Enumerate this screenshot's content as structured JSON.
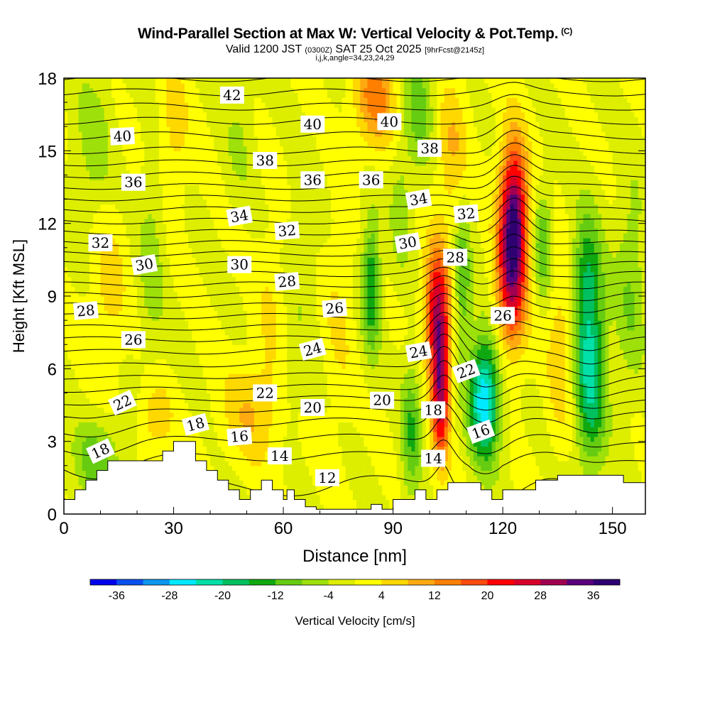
{
  "header": {
    "title": "Wind-Parallel Section at Max W: Vertical Velocity & Pot.Temp.",
    "copyright": "(C)",
    "valid_prefix": "Valid 1200 JST",
    "valid_utc": "(0300Z)",
    "valid_date": "SAT 25 Oct 2025",
    "forecast": "[9hrFcst@2145z]",
    "indices": "i,j,k,angle=34,23,24,29"
  },
  "chart_data": {
    "type": "heatmap",
    "xlabel": "Distance [nm]",
    "ylabel": "Height [Kft MSL]",
    "xlim": [
      0,
      159
    ],
    "ylim": [
      0,
      18
    ],
    "x_ticks": [
      0,
      30,
      60,
      90,
      120,
      150
    ],
    "y_ticks": [
      0,
      3,
      6,
      9,
      12,
      15,
      18
    ],
    "colorbar": {
      "label": "Vertical Velocity [cm/s]",
      "range": [
        -40,
        40
      ],
      "step": 4,
      "tick_labels": [
        -36,
        -28,
        -20,
        -12,
        -4,
        4,
        12,
        20,
        28,
        36
      ],
      "colors": [
        "#0000ee",
        "#0a50f0",
        "#0c96f0",
        "#00eaff",
        "#00e0a8",
        "#00c060",
        "#10a810",
        "#66cc11",
        "#9ee00a",
        "#ddee00",
        "#ffff00",
        "#ffd800",
        "#ffaa10",
        "#ff8000",
        "#ff4a10",
        "#ff0000",
        "#d8002a",
        "#a00050",
        "#5a007a",
        "#2e0070"
      ]
    },
    "terrain_kft": [
      [
        0,
        0.6
      ],
      [
        3,
        0.6
      ],
      [
        3,
        1.0
      ],
      [
        6,
        1.0
      ],
      [
        6,
        1.4
      ],
      [
        9,
        1.4
      ],
      [
        9,
        1.8
      ],
      [
        12,
        1.8
      ],
      [
        12,
        2.2
      ],
      [
        15,
        2.2
      ],
      [
        15,
        2.2
      ],
      [
        27,
        2.2
      ],
      [
        27,
        2.6
      ],
      [
        30,
        2.6
      ],
      [
        30,
        3.0
      ],
      [
        36,
        3.0
      ],
      [
        36,
        2.2
      ],
      [
        39,
        2.2
      ],
      [
        39,
        1.8
      ],
      [
        42,
        1.8
      ],
      [
        42,
        1.4
      ],
      [
        45,
        1.4
      ],
      [
        45,
        1.0
      ],
      [
        48,
        1.0
      ],
      [
        48,
        0.6
      ],
      [
        51,
        0.6
      ],
      [
        51,
        1.0
      ],
      [
        54,
        1.0
      ],
      [
        54,
        1.4
      ],
      [
        57,
        1.4
      ],
      [
        57,
        1.0
      ],
      [
        60,
        1.0
      ],
      [
        60,
        0.6
      ],
      [
        61,
        0.6
      ],
      [
        61,
        1.0
      ],
      [
        63,
        1.0
      ],
      [
        63,
        0.6
      ],
      [
        66,
        0.6
      ],
      [
        66,
        0.3
      ],
      [
        69,
        0.3
      ],
      [
        69,
        0.2
      ],
      [
        84,
        0.2
      ],
      [
        84,
        0.4
      ],
      [
        87,
        0.4
      ],
      [
        87,
        0.2
      ],
      [
        90,
        0.2
      ],
      [
        90,
        0.6
      ],
      [
        96,
        0.6
      ],
      [
        96,
        1.0
      ],
      [
        99,
        1.0
      ],
      [
        99,
        0.6
      ],
      [
        102,
        0.6
      ],
      [
        102,
        1.0
      ],
      [
        105,
        1.0
      ],
      [
        105,
        1.3
      ],
      [
        114,
        1.3
      ],
      [
        114,
        1.0
      ],
      [
        117,
        1.0
      ],
      [
        117,
        0.6
      ],
      [
        120,
        0.6
      ],
      [
        120,
        1.0
      ],
      [
        129,
        1.0
      ],
      [
        129,
        1.4
      ],
      [
        135,
        1.4
      ],
      [
        135,
        1.6
      ],
      [
        153,
        1.6
      ],
      [
        153,
        1.3
      ],
      [
        159,
        1.3
      ],
      [
        159,
        0
      ]
    ],
    "vertical_velocity_features": [
      {
        "x": 123,
        "y": 12.2,
        "w": 36,
        "sx": 2.6,
        "sy": 2.2
      },
      {
        "x": 122,
        "y": 9.0,
        "w": 16,
        "sx": 3.0,
        "sy": 2.0
      },
      {
        "x": 102,
        "y": 8.5,
        "w": 26,
        "sx": 2.4,
        "sy": 1.8
      },
      {
        "x": 103,
        "y": 5.0,
        "w": 28,
        "sx": 1.7,
        "sy": 2.0
      },
      {
        "x": 115,
        "y": 4.8,
        "w": -28,
        "sx": 3.0,
        "sy": 1.8
      },
      {
        "x": 144,
        "y": 5.5,
        "w": -20,
        "sx": 3.0,
        "sy": 2.5
      },
      {
        "x": 143,
        "y": 9.8,
        "w": -14,
        "sx": 3.0,
        "sy": 2.0
      },
      {
        "x": 84,
        "y": 9.5,
        "w": -16,
        "sx": 1.8,
        "sy": 2.0
      },
      {
        "x": 95,
        "y": 3.5,
        "w": -12,
        "sx": 2.0,
        "sy": 2.0
      },
      {
        "x": 131,
        "y": 11.2,
        "w": -12,
        "sx": 1.8,
        "sy": 1.5
      },
      {
        "x": 109,
        "y": 9.6,
        "w": -12,
        "sx": 1.6,
        "sy": 2.0
      },
      {
        "x": 85,
        "y": 17.2,
        "w": 14,
        "sx": 4.0,
        "sy": 1.5
      },
      {
        "x": 97,
        "y": 17.0,
        "w": -10,
        "sx": 3.0,
        "sy": 2.0
      },
      {
        "x": 52,
        "y": 4.3,
        "w": 8,
        "sx": 6.0,
        "sy": 1.5
      },
      {
        "x": 9,
        "y": 2.2,
        "w": -10,
        "sx": 5.0,
        "sy": 1.2
      },
      {
        "x": 25,
        "y": 4.0,
        "w": 8,
        "sx": 3.0,
        "sy": 1.0
      },
      {
        "x": 8,
        "y": 15.0,
        "w": -6,
        "sx": 4.0,
        "sy": 2.5
      },
      {
        "x": 24,
        "y": 10.5,
        "w": -6,
        "sx": 2.5,
        "sy": 3.0
      },
      {
        "x": 12,
        "y": 9.5,
        "w": 6,
        "sx": 3.5,
        "sy": 2.5
      },
      {
        "x": 30,
        "y": 16.0,
        "w": 6,
        "sx": 3.0,
        "sy": 2.0
      },
      {
        "x": 48,
        "y": 15.5,
        "w": -4,
        "sx": 3.0,
        "sy": 2.0
      },
      {
        "x": 57,
        "y": 8.5,
        "w": 4,
        "sx": 3.0,
        "sy": 2.5
      },
      {
        "x": 65,
        "y": 11.0,
        "w": -4,
        "sx": 3.0,
        "sy": 2.5
      },
      {
        "x": 75,
        "y": 8.0,
        "w": 4,
        "sx": 3.0,
        "sy": 3.0
      },
      {
        "x": 136,
        "y": 7.0,
        "w": 8,
        "sx": 2.5,
        "sy": 2.5
      },
      {
        "x": 155,
        "y": 9.5,
        "w": -8,
        "sx": 3.0,
        "sy": 3.0
      },
      {
        "x": 106,
        "y": 15.0,
        "w": 8,
        "sx": 3.0,
        "sy": 2.0
      },
      {
        "x": 92,
        "y": 12.5,
        "w": -6,
        "sx": 2.0,
        "sy": 2.0
      },
      {
        "x": 62,
        "y": 5.5,
        "w": -4,
        "sx": 4.0,
        "sy": 1.5
      }
    ],
    "theta_levels_c": [
      11,
      12,
      13,
      14,
      15,
      16,
      17,
      18,
      19,
      20,
      21,
      22,
      23,
      24,
      25,
      26,
      27,
      28,
      29,
      30,
      31,
      32,
      33,
      34,
      35,
      36,
      37,
      38,
      39,
      40,
      41,
      42,
      43
    ],
    "theta_profile": [
      [
        0,
        10.3
      ],
      [
        1,
        10.9
      ],
      [
        2,
        11.5
      ],
      [
        3,
        12.8
      ],
      [
        4,
        14.3
      ],
      [
        5,
        16.5
      ],
      [
        6,
        18.6
      ],
      [
        7,
        20.5
      ],
      [
        8,
        22.6
      ],
      [
        9,
        24.9
      ],
      [
        10,
        27.2
      ],
      [
        11,
        29.6
      ],
      [
        12,
        31.8
      ],
      [
        13,
        33.9
      ],
      [
        14,
        36.0
      ],
      [
        15,
        38.0
      ],
      [
        16,
        39.6
      ],
      [
        17,
        41.3
      ],
      [
        18,
        43.0
      ]
    ],
    "theta_features": [
      {
        "x": 123,
        "y": 12.5,
        "a": -2.2,
        "sx": 4,
        "sy": 3
      },
      {
        "x": 104,
        "y": 8.5,
        "a": -1.6,
        "sx": 4,
        "sy": 2.5
      },
      {
        "x": 104,
        "y": 5.0,
        "a": -1.4,
        "sx": 3,
        "sy": 2.5
      },
      {
        "x": 116,
        "y": 5.0,
        "a": 1.2,
        "sx": 5,
        "sy": 2.5
      },
      {
        "x": 144,
        "y": 5.5,
        "a": 0.8,
        "sx": 5,
        "sy": 3
      },
      {
        "x": 10,
        "y": 3.0,
        "a": 0.8,
        "sx": 10,
        "sy": 2
      }
    ],
    "contour_labels": [
      {
        "text": "42",
        "x": 46,
        "y": 17.3,
        "rot": 0
      },
      {
        "text": "40",
        "x": 16,
        "y": 15.6,
        "rot": -3
      },
      {
        "text": "40",
        "x": 68,
        "y": 16.1,
        "rot": 0
      },
      {
        "text": "40",
        "x": 89,
        "y": 16.2,
        "rot": 0
      },
      {
        "text": "38",
        "x": 55,
        "y": 14.6,
        "rot": 0
      },
      {
        "text": "38",
        "x": 100,
        "y": 15.1,
        "rot": 0
      },
      {
        "text": "36",
        "x": 19,
        "y": 13.7,
        "rot": 0
      },
      {
        "text": "36",
        "x": 68,
        "y": 13.8,
        "rot": 0
      },
      {
        "text": "36",
        "x": 84,
        "y": 13.8,
        "rot": 0
      },
      {
        "text": "34",
        "x": 48,
        "y": 12.3,
        "rot": -10
      },
      {
        "text": "34",
        "x": 97,
        "y": 13.0,
        "rot": -10
      },
      {
        "text": "32",
        "x": 10,
        "y": 11.2,
        "rot": 0
      },
      {
        "text": "32",
        "x": 61,
        "y": 11.7,
        "rot": -5
      },
      {
        "text": "32",
        "x": 110,
        "y": 12.4,
        "rot": -5
      },
      {
        "text": "30",
        "x": 22,
        "y": 10.3,
        "rot": -10
      },
      {
        "text": "30",
        "x": 48,
        "y": 10.3,
        "rot": 0
      },
      {
        "text": "30",
        "x": 94,
        "y": 11.2,
        "rot": -10
      },
      {
        "text": "28",
        "x": 6,
        "y": 8.4,
        "rot": -5
      },
      {
        "text": "28",
        "x": 61,
        "y": 9.6,
        "rot": -5
      },
      {
        "text": "28",
        "x": 107,
        "y": 10.6,
        "rot": 0
      },
      {
        "text": "26",
        "x": 19,
        "y": 7.2,
        "rot": 0
      },
      {
        "text": "26",
        "x": 74,
        "y": 8.5,
        "rot": -5
      },
      {
        "text": "26",
        "x": 120,
        "y": 8.2,
        "rot": 0
      },
      {
        "text": "24",
        "x": 68,
        "y": 6.8,
        "rot": -15
      },
      {
        "text": "24",
        "x": 97,
        "y": 6.7,
        "rot": -10
      },
      {
        "text": "22",
        "x": 16,
        "y": 4.6,
        "rot": -25
      },
      {
        "text": "22",
        "x": 55,
        "y": 5.0,
        "rot": 0
      },
      {
        "text": "22",
        "x": 110,
        "y": 5.9,
        "rot": -20
      },
      {
        "text": "20",
        "x": 68,
        "y": 4.4,
        "rot": 0
      },
      {
        "text": "20",
        "x": 87,
        "y": 4.7,
        "rot": 0
      },
      {
        "text": "18",
        "x": 10,
        "y": 2.6,
        "rot": -25
      },
      {
        "text": "18",
        "x": 36,
        "y": 3.7,
        "rot": -15
      },
      {
        "text": "18",
        "x": 101,
        "y": 4.3,
        "rot": 0
      },
      {
        "text": "16",
        "x": 48,
        "y": 3.2,
        "rot": -5
      },
      {
        "text": "16",
        "x": 114,
        "y": 3.4,
        "rot": -20
      },
      {
        "text": "14",
        "x": 59,
        "y": 2.4,
        "rot": 0
      },
      {
        "text": "14",
        "x": 101,
        "y": 2.3,
        "rot": 0
      },
      {
        "text": "12",
        "x": 72,
        "y": 1.5,
        "rot": 0
      }
    ]
  }
}
